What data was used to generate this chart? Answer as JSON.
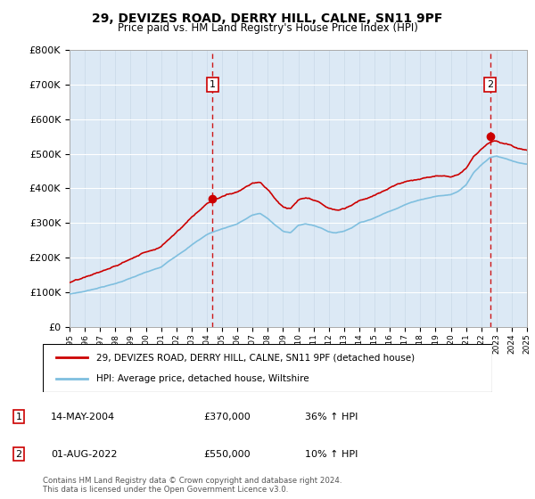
{
  "title": "29, DEVIZES ROAD, DERRY HILL, CALNE, SN11 9PF",
  "subtitle": "Price paid vs. HM Land Registry's House Price Index (HPI)",
  "plot_bg_color": "#dce9f5",
  "ylim": [
    0,
    800000
  ],
  "yticks": [
    0,
    100000,
    200000,
    300000,
    400000,
    500000,
    600000,
    700000,
    800000
  ],
  "sale1_date_num": 2004.37,
  "sale1_price": 370000,
  "sale1_label": "14-MAY-2004",
  "sale1_pct": "36%",
  "sale2_date_num": 2022.58,
  "sale2_price": 550000,
  "sale2_label": "01-AUG-2022",
  "sale2_pct": "10%",
  "legend_line1": "29, DEVIZES ROAD, DERRY HILL, CALNE, SN11 9PF (detached house)",
  "legend_line2": "HPI: Average price, detached house, Wiltshire",
  "footnote": "Contains HM Land Registry data © Crown copyright and database right 2024.\nThis data is licensed under the Open Government Licence v3.0.",
  "hpi_color": "#7fbfdf",
  "sale_color": "#cc0000",
  "xmin": 1995,
  "xmax": 2025
}
